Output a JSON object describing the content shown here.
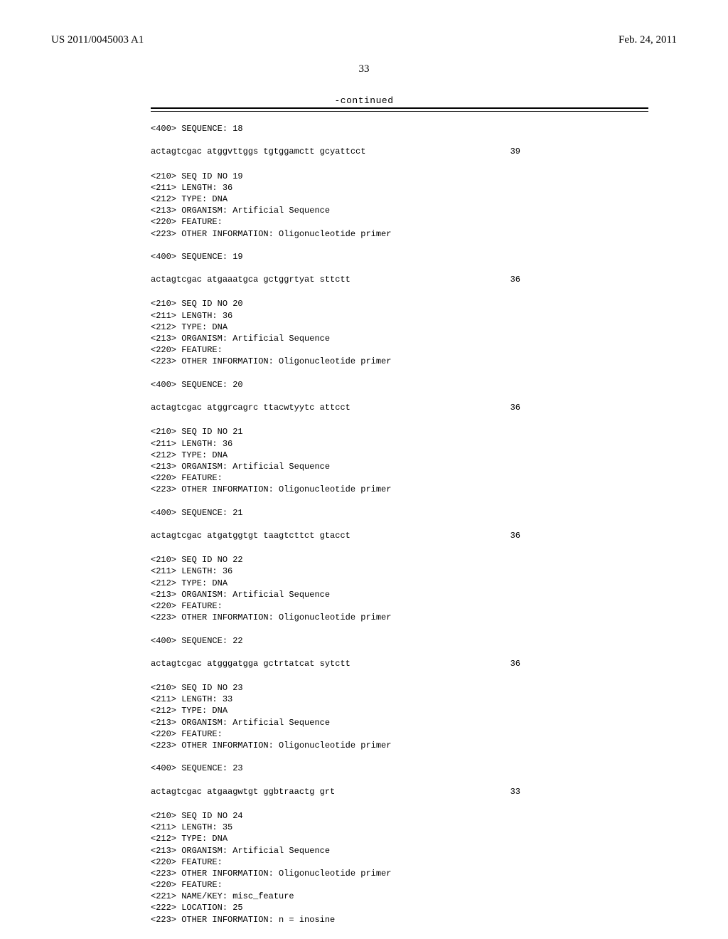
{
  "header": {
    "publication_number": "US 2011/0045003 A1",
    "publication_date": "Feb. 24, 2011"
  },
  "page_number": "33",
  "continued_label": "-continued",
  "entries": [
    {
      "prelines": [
        "<400> SEQUENCE: 18"
      ],
      "sequence": "actagtcgac atggvttggs tgtggamctt gcyattcct",
      "length": "39"
    },
    {
      "prelines": [
        "<210> SEQ ID NO 19",
        "<211> LENGTH: 36",
        "<212> TYPE: DNA",
        "<213> ORGANISM: Artificial Sequence",
        "<220> FEATURE:",
        "<223> OTHER INFORMATION: Oligonucleotide primer",
        "",
        "<400> SEQUENCE: 19"
      ],
      "sequence": "actagtcgac atgaaatgca gctggrtyat sttctt",
      "length": "36"
    },
    {
      "prelines": [
        "<210> SEQ ID NO 20",
        "<211> LENGTH: 36",
        "<212> TYPE: DNA",
        "<213> ORGANISM: Artificial Sequence",
        "<220> FEATURE:",
        "<223> OTHER INFORMATION: Oligonucleotide primer",
        "",
        "<400> SEQUENCE: 20"
      ],
      "sequence": "actagtcgac atggrcagrc ttacwtyytc attcct",
      "length": "36"
    },
    {
      "prelines": [
        "<210> SEQ ID NO 21",
        "<211> LENGTH: 36",
        "<212> TYPE: DNA",
        "<213> ORGANISM: Artificial Sequence",
        "<220> FEATURE:",
        "<223> OTHER INFORMATION: Oligonucleotide primer",
        "",
        "<400> SEQUENCE: 21"
      ],
      "sequence": "actagtcgac atgatggtgt taagtcttct gtacct",
      "length": "36"
    },
    {
      "prelines": [
        "<210> SEQ ID NO 22",
        "<211> LENGTH: 36",
        "<212> TYPE: DNA",
        "<213> ORGANISM: Artificial Sequence",
        "<220> FEATURE:",
        "<223> OTHER INFORMATION: Oligonucleotide primer",
        "",
        "<400> SEQUENCE: 22"
      ],
      "sequence": "actagtcgac atgggatgga gctrtatcat sytctt",
      "length": "36"
    },
    {
      "prelines": [
        "<210> SEQ ID NO 23",
        "<211> LENGTH: 33",
        "<212> TYPE: DNA",
        "<213> ORGANISM: Artificial Sequence",
        "<220> FEATURE:",
        "<223> OTHER INFORMATION: Oligonucleotide primer",
        "",
        "<400> SEQUENCE: 23"
      ],
      "sequence": "actagtcgac atgaagwtgt ggbtraactg grt",
      "length": "33"
    },
    {
      "prelines": [
        "<210> SEQ ID NO 24",
        "<211> LENGTH: 35",
        "<212> TYPE: DNA",
        "<213> ORGANISM: Artificial Sequence",
        "<220> FEATURE:",
        "<223> OTHER INFORMATION: Oligonucleotide primer",
        "<220> FEATURE:",
        "<221> NAME/KEY: misc_feature",
        "<222> LOCATION: 25",
        "<223> OTHER INFORMATION: n = inosine"
      ],
      "sequence": "",
      "length": ""
    }
  ]
}
